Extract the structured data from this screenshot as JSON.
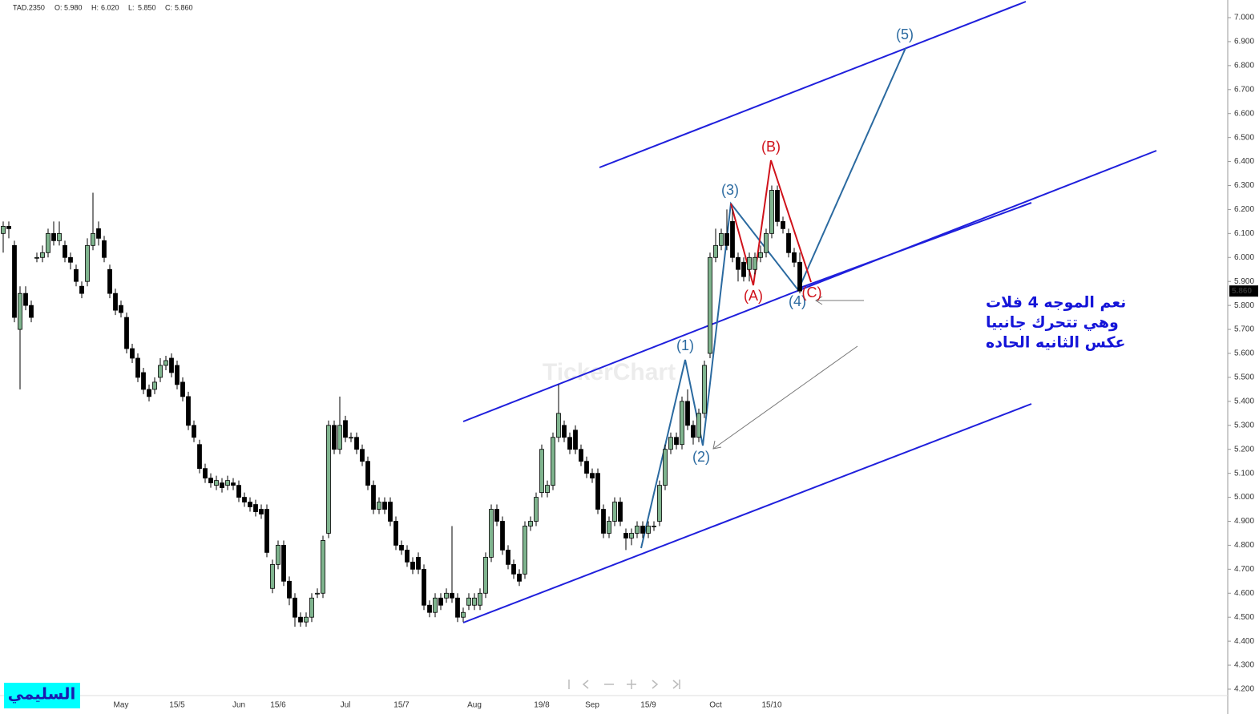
{
  "header": {
    "symbol": "TAD.2350",
    "fields": [
      {
        "name": "O:",
        "value": "5.980"
      },
      {
        "name": "H:",
        "value": "6.020"
      },
      {
        "name": "L:",
        "value": "5.850"
      },
      {
        "name": "C:",
        "value": "5.860"
      }
    ]
  },
  "chart_data": {
    "type": "candlestick",
    "categories": [
      null,
      null,
      null,
      null,
      null,
      null,
      null,
      null,
      null,
      null,
      null,
      null,
      null,
      null,
      null,
      null,
      null,
      null,
      null,
      null,
      null,
      "May",
      null,
      null,
      null,
      null,
      null,
      null,
      null,
      null,
      null,
      "15/5",
      null,
      null,
      null,
      null,
      null,
      null,
      null,
      null,
      null,
      null,
      "Jun",
      null,
      null,
      null,
      null,
      null,
      null,
      "15/6",
      null,
      null,
      null,
      null,
      null,
      null,
      null,
      null,
      null,
      null,
      null,
      "Jul",
      null,
      null,
      null,
      null,
      null,
      null,
      null,
      null,
      null,
      "15/7",
      null,
      null,
      null,
      null,
      null,
      null,
      null,
      null,
      null,
      null,
      null,
      null,
      "Aug",
      null,
      null,
      null,
      null,
      null,
      null,
      null,
      null,
      null,
      null,
      null,
      "19/8",
      null,
      null,
      null,
      null,
      null,
      null,
      null,
      null,
      "Sep",
      null,
      null,
      null,
      null,
      null,
      null,
      null,
      null,
      null,
      "15/9",
      null,
      null,
      null,
      null,
      null,
      null,
      null,
      null,
      null,
      null,
      null,
      "Oct",
      null,
      null,
      null,
      null,
      null,
      null,
      null,
      null,
      null,
      "15/10",
      null,
      null,
      null,
      null,
      null
    ],
    "values": [
      [
        6.1,
        6.15,
        6.02,
        6.13
      ],
      [
        6.13,
        6.15,
        6.08,
        6.12
      ],
      [
        6.05,
        6.07,
        5.73,
        5.75
      ],
      [
        5.7,
        5.88,
        5.45,
        5.85
      ],
      [
        5.85,
        5.88,
        5.78,
        5.8
      ],
      [
        5.8,
        5.82,
        5.73,
        5.75
      ],
      [
        6.0,
        6.02,
        5.98,
        6.0
      ],
      [
        6.0,
        6.05,
        5.98,
        6.02
      ],
      [
        6.02,
        6.12,
        6.0,
        6.1
      ],
      [
        6.1,
        6.15,
        6.05,
        6.07
      ],
      [
        6.07,
        6.15,
        6.05,
        6.1
      ],
      [
        6.05,
        6.07,
        5.98,
        6.0
      ],
      [
        6.0,
        6.02,
        5.95,
        5.98
      ],
      [
        5.95,
        5.97,
        5.88,
        5.9
      ],
      [
        5.88,
        5.9,
        5.83,
        5.85
      ],
      [
        5.9,
        6.08,
        5.88,
        6.05
      ],
      [
        6.05,
        6.27,
        6.03,
        6.1
      ],
      [
        6.12,
        6.15,
        6.05,
        6.08
      ],
      [
        6.07,
        6.09,
        5.98,
        6.0
      ],
      [
        5.95,
        5.97,
        5.83,
        5.85
      ],
      [
        5.85,
        5.87,
        5.76,
        5.78
      ],
      [
        5.8,
        5.82,
        5.75,
        5.77
      ],
      [
        5.75,
        5.77,
        5.6,
        5.62
      ],
      [
        5.62,
        5.64,
        5.56,
        5.58
      ],
      [
        5.58,
        5.6,
        5.48,
        5.5
      ],
      [
        5.52,
        5.54,
        5.43,
        5.45
      ],
      [
        5.45,
        5.47,
        5.4,
        5.42
      ],
      [
        5.45,
        5.5,
        5.43,
        5.48
      ],
      [
        5.5,
        5.58,
        5.48,
        5.55
      ],
      [
        5.55,
        5.59,
        5.53,
        5.57
      ],
      [
        5.58,
        5.6,
        5.5,
        5.52
      ],
      [
        5.55,
        5.57,
        5.45,
        5.47
      ],
      [
        5.48,
        5.5,
        5.4,
        5.42
      ],
      [
        5.42,
        5.44,
        5.28,
        5.3
      ],
      [
        5.3,
        5.32,
        5.23,
        5.25
      ],
      [
        5.22,
        5.24,
        5.1,
        5.12
      ],
      [
        5.12,
        5.14,
        5.06,
        5.08
      ],
      [
        5.08,
        5.1,
        5.04,
        5.06
      ],
      [
        5.05,
        5.09,
        5.03,
        5.07
      ],
      [
        5.06,
        5.08,
        5.02,
        5.04
      ],
      [
        5.05,
        5.09,
        5.03,
        5.07
      ],
      [
        5.06,
        5.08,
        5.03,
        5.05
      ],
      [
        5.05,
        5.07,
        4.98,
        5.0
      ],
      [
        5.0,
        5.02,
        4.96,
        4.98
      ],
      [
        4.98,
        5.0,
        4.94,
        4.96
      ],
      [
        4.97,
        4.99,
        4.92,
        4.94
      ],
      [
        4.95,
        4.97,
        4.91,
        4.93
      ],
      [
        4.95,
        4.97,
        4.75,
        4.77
      ],
      [
        4.62,
        4.74,
        4.6,
        4.72
      ],
      [
        4.72,
        4.82,
        4.7,
        4.8
      ],
      [
        4.8,
        4.82,
        4.63,
        4.65
      ],
      [
        4.65,
        4.67,
        4.55,
        4.58
      ],
      [
        4.58,
        4.6,
        4.46,
        4.5
      ],
      [
        4.5,
        4.52,
        4.46,
        4.48
      ],
      [
        4.48,
        4.52,
        4.46,
        4.5
      ],
      [
        4.5,
        4.6,
        4.48,
        4.58
      ],
      [
        4.6,
        4.62,
        4.58,
        4.6
      ],
      [
        4.6,
        4.84,
        4.58,
        4.82
      ],
      [
        4.85,
        5.32,
        4.83,
        5.3
      ],
      [
        5.3,
        5.32,
        5.18,
        5.2
      ],
      [
        5.2,
        5.42,
        5.18,
        5.3
      ],
      [
        5.32,
        5.34,
        5.23,
        5.25
      ],
      [
        5.25,
        5.27,
        5.23,
        5.25
      ],
      [
        5.25,
        5.27,
        5.18,
        5.2
      ],
      [
        5.2,
        5.22,
        5.13,
        5.15
      ],
      [
        5.15,
        5.17,
        5.03,
        5.05
      ],
      [
        5.05,
        5.07,
        4.93,
        4.95
      ],
      [
        4.95,
        5.0,
        4.93,
        4.98
      ],
      [
        4.98,
        5.0,
        4.93,
        4.95
      ],
      [
        4.98,
        5.0,
        4.88,
        4.9
      ],
      [
        4.9,
        4.92,
        4.78,
        4.8
      ],
      [
        4.8,
        4.82,
        4.76,
        4.78
      ],
      [
        4.78,
        4.8,
        4.71,
        4.73
      ],
      [
        4.73,
        4.75,
        4.68,
        4.7
      ],
      [
        4.75,
        4.77,
        4.68,
        4.7
      ],
      [
        4.7,
        4.72,
        4.53,
        4.55
      ],
      [
        4.55,
        4.57,
        4.5,
        4.52
      ],
      [
        4.52,
        4.6,
        4.5,
        4.58
      ],
      [
        4.58,
        4.6,
        4.53,
        4.55
      ],
      [
        4.58,
        4.62,
        4.56,
        4.6
      ],
      [
        4.6,
        4.88,
        4.56,
        4.58
      ],
      [
        4.58,
        4.6,
        4.48,
        4.5
      ],
      [
        4.5,
        4.54,
        4.48,
        4.52
      ],
      [
        4.55,
        4.6,
        4.53,
        4.58
      ],
      [
        4.55,
        4.6,
        4.53,
        4.58
      ],
      [
        4.55,
        4.62,
        4.53,
        4.6
      ],
      [
        4.6,
        4.77,
        4.58,
        4.75
      ],
      [
        4.75,
        4.97,
        4.73,
        4.95
      ],
      [
        4.95,
        4.97,
        4.88,
        4.9
      ],
      [
        4.9,
        4.92,
        4.76,
        4.78
      ],
      [
        4.78,
        4.8,
        4.7,
        4.72
      ],
      [
        4.72,
        4.74,
        4.66,
        4.68
      ],
      [
        4.68,
        4.7,
        4.63,
        4.65
      ],
      [
        4.68,
        4.9,
        4.66,
        4.88
      ],
      [
        4.88,
        4.92,
        4.86,
        4.9
      ],
      [
        4.9,
        5.02,
        4.88,
        5.0
      ],
      [
        5.02,
        5.22,
        5.0,
        5.2
      ],
      [
        5.02,
        5.07,
        5.0,
        5.05
      ],
      [
        5.05,
        5.27,
        5.03,
        5.25
      ],
      [
        5.25,
        5.47,
        5.23,
        5.35
      ],
      [
        5.3,
        5.32,
        5.23,
        5.25
      ],
      [
        5.25,
        5.27,
        5.18,
        5.2
      ],
      [
        5.28,
        5.3,
        5.18,
        5.2
      ],
      [
        5.2,
        5.22,
        5.13,
        5.15
      ],
      [
        5.15,
        5.17,
        5.08,
        5.1
      ],
      [
        5.1,
        5.12,
        5.06,
        5.08
      ],
      [
        5.1,
        5.12,
        4.93,
        4.95
      ],
      [
        4.95,
        4.97,
        4.83,
        4.85
      ],
      [
        4.85,
        4.92,
        4.83,
        4.9
      ],
      [
        4.9,
        5.0,
        4.88,
        4.98
      ],
      [
        4.98,
        5.0,
        4.88,
        4.9
      ],
      [
        4.85,
        4.87,
        4.78,
        4.83
      ],
      [
        4.83,
        4.87,
        4.8,
        4.85
      ],
      [
        4.85,
        4.9,
        4.83,
        4.88
      ],
      [
        4.88,
        4.9,
        4.83,
        4.85
      ],
      [
        4.85,
        4.9,
        4.83,
        4.88
      ],
      [
        4.88,
        4.9,
        4.86,
        4.88
      ],
      [
        4.9,
        5.07,
        4.88,
        5.05
      ],
      [
        5.05,
        5.22,
        5.03,
        5.2
      ],
      [
        5.2,
        5.27,
        5.18,
        5.25
      ],
      [
        5.25,
        5.27,
        5.2,
        5.22
      ],
      [
        5.22,
        5.42,
        5.2,
        5.4
      ],
      [
        5.4,
        5.45,
        5.28,
        5.3
      ],
      [
        5.3,
        5.32,
        5.22,
        5.25
      ],
      [
        5.25,
        5.37,
        5.23,
        5.35
      ],
      [
        5.35,
        5.57,
        5.33,
        5.55
      ],
      [
        5.6,
        6.02,
        5.58,
        6.0
      ],
      [
        6.0,
        6.12,
        5.98,
        6.05
      ],
      [
        6.05,
        6.12,
        6.03,
        6.1
      ],
      [
        6.1,
        6.2,
        6.03,
        6.05
      ],
      [
        6.15,
        6.2,
        5.98,
        6.0
      ],
      [
        6.0,
        6.02,
        5.9,
        5.95
      ],
      [
        5.98,
        6.0,
        5.9,
        5.92
      ],
      [
        5.95,
        6.02,
        5.9,
        6.0
      ],
      [
        5.95,
        6.02,
        5.93,
        6.0
      ],
      [
        6.0,
        6.05,
        5.98,
        6.02
      ],
      [
        6.02,
        6.12,
        6.0,
        6.1
      ],
      [
        6.1,
        6.3,
        6.08,
        6.28
      ],
      [
        6.28,
        6.3,
        6.13,
        6.15
      ],
      [
        6.15,
        6.17,
        6.1,
        6.12
      ],
      [
        6.1,
        6.12,
        6.0,
        6.02
      ],
      [
        6.02,
        6.04,
        5.96,
        5.98
      ],
      [
        5.98,
        6.02,
        5.85,
        5.86
      ]
    ],
    "up_color": "#7fb48e",
    "down_color": "#000000",
    "ylim": [
      4.2,
      7.0
    ],
    "yticks": [
      {
        "value": 4.2,
        "label": "4.200"
      },
      {
        "value": 4.3,
        "label": "4.300"
      },
      {
        "value": 4.4,
        "label": "4.400"
      },
      {
        "value": 4.5,
        "label": "4.500"
      },
      {
        "value": 4.6,
        "label": "4.600"
      },
      {
        "value": 4.7,
        "label": "4.700"
      },
      {
        "value": 4.8,
        "label": "4.800"
      },
      {
        "value": 4.9,
        "label": "4.900"
      },
      {
        "value": 5.0,
        "label": "5.000"
      },
      {
        "value": 5.1,
        "label": "5.100"
      },
      {
        "value": 5.2,
        "label": "5.200"
      },
      {
        "value": 5.3,
        "label": "5.300"
      },
      {
        "value": 5.4,
        "label": "5.400"
      },
      {
        "value": 5.5,
        "label": "5.500"
      },
      {
        "value": 5.6,
        "label": "5.600"
      },
      {
        "value": 5.7,
        "label": "5.700"
      },
      {
        "value": 5.8,
        "label": "5.800"
      },
      {
        "value": 5.9,
        "label": "5.900"
      },
      {
        "value": 6.0,
        "label": "6.000"
      },
      {
        "value": 6.1,
        "label": "6.100"
      },
      {
        "value": 6.2,
        "label": "6.200"
      },
      {
        "value": 6.3,
        "label": "6.300"
      },
      {
        "value": 6.4,
        "label": "6.400"
      },
      {
        "value": 6.5,
        "label": "6.500"
      },
      {
        "value": 6.6,
        "label": "6.600"
      },
      {
        "value": 6.7,
        "label": "6.700"
      },
      {
        "value": 6.8,
        "label": "6.800"
      },
      {
        "value": 6.9,
        "label": "6.900"
      },
      {
        "value": 7.0,
        "label": "7.000"
      }
    ],
    "grid": false,
    "last_price": {
      "value": 5.86,
      "label": "5.860"
    },
    "annotations": {
      "waves": [
        "(1)",
        "(2)",
        "(3)",
        "(4)",
        "(5)"
      ],
      "corrective": [
        "(A)",
        "(B)",
        "(C)"
      ],
      "note": [
        "نعم الموجه 4 فلات",
        "وهي تتحرك جانبيا",
        "عكس الثانيه الحاده"
      ]
    },
    "watermark": "TickerChart"
  },
  "badge": "السليمي"
}
